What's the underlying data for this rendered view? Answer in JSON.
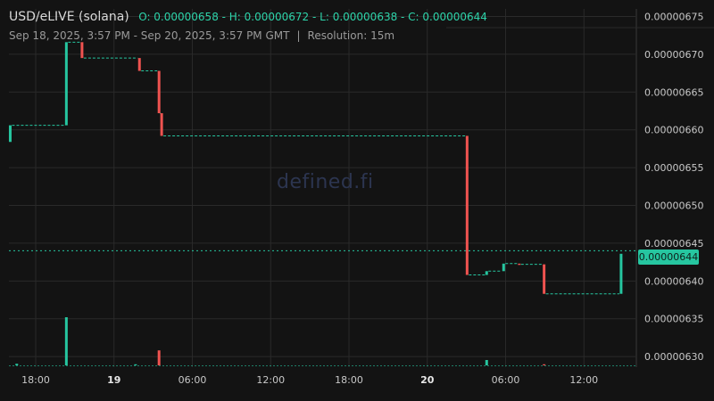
{
  "header": {
    "symbol": "USD/eLIVE (solana)",
    "ohlc": "O: 0.00000658 - H: 0.00000672 - L: 0.00000638 - C: 0.00000644",
    "range": "Sep 18, 2025, 3:57 PM - Sep 20, 2025, 3:57 PM GMT",
    "separator": "|",
    "resolution": "Resolution: 15m"
  },
  "watermark": "defined.fi",
  "last_price_label": "0.00000644",
  "colors": {
    "up": "#26c6a0",
    "down": "#ef5350",
    "bg": "#131313",
    "grid": "#2a2a2a"
  },
  "chart_data": {
    "type": "candlestick",
    "y_ticks": [
      "0.00000675",
      "0.00000670",
      "0.00000665",
      "0.00000660",
      "0.00000655",
      "0.00000650",
      "0.00000645",
      "0.00000640",
      "0.00000635",
      "0.00000630"
    ],
    "y_tick_values": [
      6.75,
      6.7,
      6.65,
      6.6,
      6.55,
      6.5,
      6.45,
      6.4,
      6.35,
      6.3
    ],
    "y_unit_scale": "1e-6",
    "x_ticks": [
      {
        "label": "18:00",
        "hour": 2.05,
        "bold": false
      },
      {
        "label": "19",
        "hour": 8.05,
        "bold": true
      },
      {
        "label": "06:00",
        "hour": 14.05,
        "bold": false
      },
      {
        "label": "12:00",
        "hour": 20.05,
        "bold": false
      },
      {
        "label": "18:00",
        "hour": 26.05,
        "bold": false
      },
      {
        "label": "20",
        "hour": 32.05,
        "bold": true
      },
      {
        "label": "06:00",
        "hour": 38.05,
        "bold": false
      },
      {
        "label": "12:00",
        "hour": 44.05,
        "bold": false
      }
    ],
    "x_range_hours": [
      0,
      48
    ],
    "y_range": [
      6.286,
      6.76
    ],
    "last_price": 6.44,
    "candles": [
      {
        "t": 0.1,
        "o": 6.584,
        "c": 6.606
      },
      {
        "t": 4.4,
        "o": 6.606,
        "c": 6.716
      },
      {
        "t": 5.6,
        "o": 6.716,
        "c": 6.695
      },
      {
        "t": 10.0,
        "o": 6.695,
        "c": 6.678
      },
      {
        "t": 11.5,
        "o": 6.678,
        "c": 6.622
      },
      {
        "t": 11.7,
        "o": 6.622,
        "c": 6.592
      },
      {
        "t": 35.1,
        "o": 6.592,
        "c": 6.408
      },
      {
        "t": 36.6,
        "o": 6.408,
        "c": 6.413
      },
      {
        "t": 37.9,
        "o": 6.413,
        "c": 6.423
      },
      {
        "t": 39.1,
        "o": 6.423,
        "c": 6.422
      },
      {
        "t": 41.0,
        "o": 6.422,
        "c": 6.383
      },
      {
        "t": 46.9,
        "o": 6.383,
        "c": 6.436
      }
    ],
    "volume": [
      {
        "t": 4.4,
        "v": 0.9,
        "dir": "up"
      },
      {
        "t": 11.5,
        "v": 0.28,
        "dir": "down"
      },
      {
        "t": 36.6,
        "v": 0.1,
        "dir": "up"
      },
      {
        "t": 0.6,
        "v": 0.03,
        "dir": "up"
      },
      {
        "t": 9.7,
        "v": 0.02,
        "dir": "up"
      },
      {
        "t": 41.0,
        "v": 0.02,
        "dir": "down"
      }
    ]
  }
}
